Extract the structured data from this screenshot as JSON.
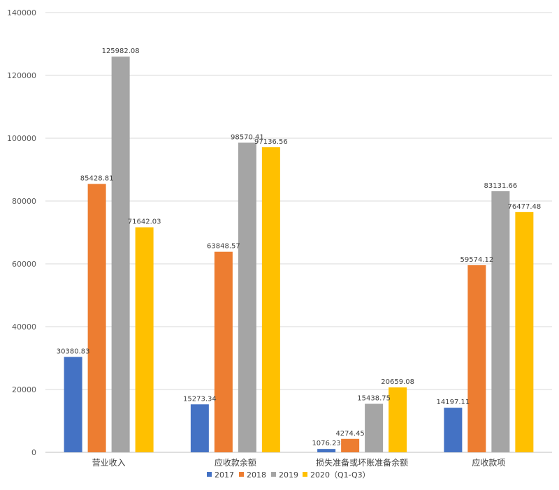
{
  "chart_data": {
    "type": "bar",
    "categories": [
      "营业收入",
      "应收款余额",
      "损失准备或坏账准备余额",
      "应收款项"
    ],
    "series": [
      {
        "name": "2017",
        "color": "#4472c4",
        "values": [
          30380.83,
          15273.34,
          1076.23,
          14197.11
        ]
      },
      {
        "name": "2018",
        "color": "#ed7d31",
        "values": [
          85428.81,
          63848.57,
          4274.45,
          59574.12
        ]
      },
      {
        "name": "2019",
        "color": "#a5a5a5",
        "values": [
          125982.08,
          98570.41,
          15438.75,
          83131.66
        ]
      },
      {
        "name": "2020（Q1-Q3）",
        "color": "#ffc000",
        "values": [
          71642.03,
          97136.56,
          20659.08,
          76477.48
        ]
      }
    ],
    "data_labels": [
      [
        "30380.83",
        "15273.34",
        "1076.23",
        "14197.11"
      ],
      [
        "85428.81",
        "63848.57",
        "4274.45",
        "59574.12"
      ],
      [
        "125982.08",
        "98570.41",
        "15438.75",
        "83131.66"
      ],
      [
        "71642.03",
        "97136.56",
        "20659.08",
        "76477.48"
      ]
    ],
    "y_ticks": [
      "0",
      "20000",
      "40000",
      "60000",
      "80000",
      "100000",
      "120000",
      "140000"
    ],
    "ylim": [
      0,
      140000
    ],
    "grid": true,
    "legend_position": "bottom",
    "title": "",
    "xlabel": "",
    "ylabel": ""
  }
}
